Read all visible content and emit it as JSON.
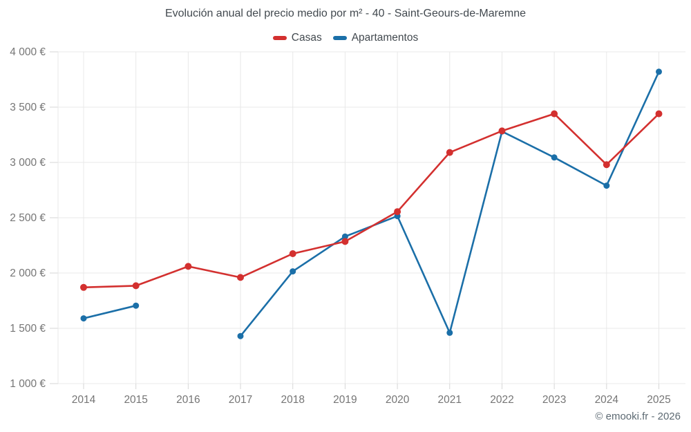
{
  "header": {
    "title": "Evolución anual del precio medio por m² - 40 - Saint-Geours-de-Maremne"
  },
  "legend": [
    {
      "label": "Casas",
      "color": "#d3302f"
    },
    {
      "label": "Apartamentos",
      "color": "#1b6fa8"
    }
  ],
  "footer": {
    "credit": "© emooki.fr - 2026"
  },
  "colors": {
    "casas": "#d3302f",
    "apartamentos": "#1b6fa8",
    "gridline": "#e8e8e8",
    "tick": "#d6d6d6",
    "axis_text": "#757575",
    "title_text": "#42494f"
  },
  "chart_data": {
    "type": "line",
    "title": "Evolución anual del precio medio por m² - 40 - Saint-Geours-de-Maremne",
    "x": [
      2014,
      2015,
      2016,
      2017,
      2018,
      2019,
      2020,
      2021,
      2022,
      2023,
      2024,
      2025
    ],
    "series": [
      {
        "name": "Casas",
        "color": "#d3302f",
        "values": [
          1870,
          1885,
          2060,
          1960,
          2175,
          2285,
          2555,
          3090,
          3285,
          3440,
          2980,
          3440
        ]
      },
      {
        "name": "Apartamentos",
        "color": "#1b6fa8",
        "values": [
          1590,
          1705,
          null,
          1430,
          2015,
          2330,
          2515,
          1460,
          3280,
          3045,
          2790,
          3820
        ]
      }
    ],
    "xlabel": "",
    "ylabel": "",
    "ylim": [
      1000,
      4000
    ],
    "ytick_step": 500,
    "ytick_suffix": "€",
    "grid": true,
    "legend_position": "top"
  }
}
